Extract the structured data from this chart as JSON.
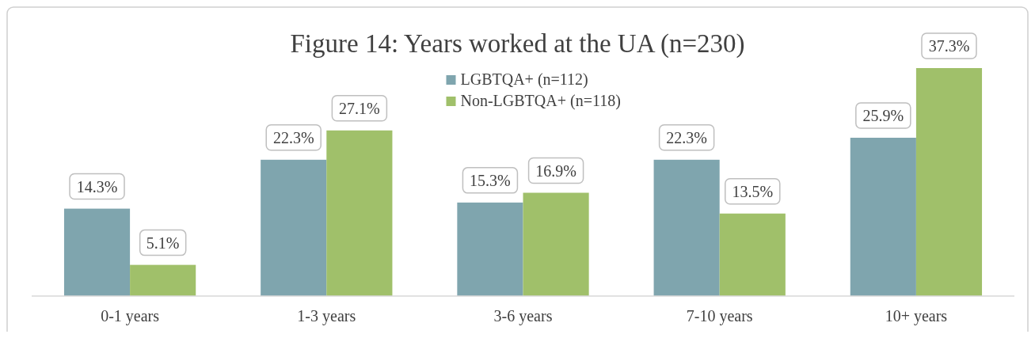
{
  "chart_data": {
    "type": "bar",
    "title": "Figure 14: Years worked at the UA (n=230)",
    "categories": [
      "0-1 years",
      "1-3 years",
      "3-6 years",
      "7-10 years",
      "10+ years"
    ],
    "series": [
      {
        "name": "LGBTQA+ (n=112)",
        "color": "#7fa5ae",
        "values": [
          14.3,
          22.3,
          15.3,
          22.3,
          25.9
        ],
        "value_labels": [
          "14.3%",
          "22.3%",
          "15.3%",
          "22.3%",
          "25.9%"
        ]
      },
      {
        "name": "Non-LGBTQA+ (n=118)",
        "color": "#a0c06a",
        "values": [
          5.1,
          27.1,
          16.9,
          13.5,
          37.3
        ],
        "value_labels": [
          "5.1%",
          "27.1%",
          "16.9%",
          "13.5%",
          "37.3%"
        ]
      }
    ],
    "legend": "top",
    "grid": false
  }
}
